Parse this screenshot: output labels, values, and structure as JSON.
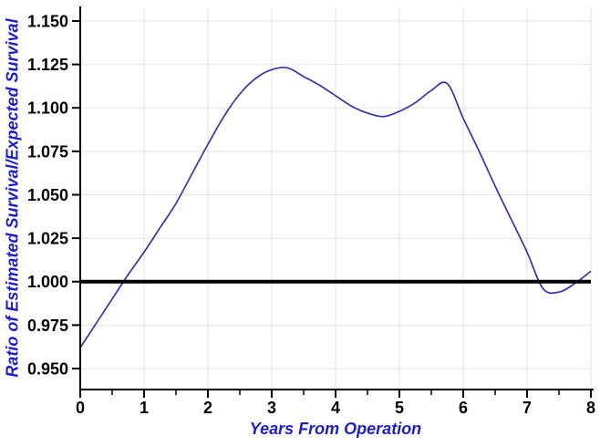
{
  "chart_data": {
    "type": "line",
    "title": "",
    "xlabel": "Years From Operation",
    "ylabel": "Ratio of Estimated Survival/Expected Survival",
    "xlim": [
      0,
      8
    ],
    "ylim": [
      0.95,
      1.15
    ],
    "grid": true,
    "legend_position": "none",
    "x_tick_labels": [
      "0",
      "1",
      "2",
      "3",
      "4",
      "5",
      "6",
      "7",
      "8"
    ],
    "x_minor_ticks": [
      0.5,
      1.5,
      2.5,
      3.5,
      4.5,
      5.5,
      6.5,
      7.5
    ],
    "y_tick_labels": [
      "1.150",
      "1.125",
      "1.100",
      "1.075",
      "1.050",
      "1.025",
      "1.000",
      "0.975",
      "0.950"
    ],
    "reference_line_y": 1.0,
    "series": [
      {
        "name": "estimated-vs-expected-survival-ratio",
        "x": [
          0,
          0.25,
          0.5,
          0.75,
          1,
          1.25,
          1.5,
          1.75,
          2,
          2.25,
          2.5,
          2.75,
          3,
          3.25,
          3.5,
          3.75,
          4,
          4.25,
          4.5,
          4.75,
          5,
          5.25,
          5.5,
          5.75,
          6,
          6.25,
          6.5,
          6.75,
          7,
          7.25,
          7.5,
          7.75,
          8
        ],
        "y": [
          0.962,
          0.976,
          0.99,
          1.004,
          1.017,
          1.031,
          1.045,
          1.062,
          1.079,
          1.095,
          1.108,
          1.117,
          1.122,
          1.123,
          1.118,
          1.113,
          1.107,
          1.101,
          1.097,
          1.095,
          1.098,
          1.103,
          1.11,
          1.114,
          1.094,
          1.075,
          1.055,
          1.036,
          1.017,
          0.996,
          0.994,
          0.999,
          1.006
        ]
      }
    ],
    "colors": {
      "curve": "#3434ab",
      "reference_line": "#000000",
      "axis": "#000000",
      "grid": "#e2e2e2",
      "tick_label": "#000000",
      "axis_title": "#1e1ec8",
      "background": "#ffffff"
    }
  }
}
